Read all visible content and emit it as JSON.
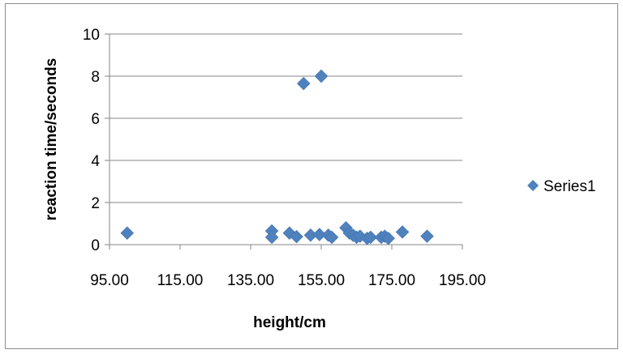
{
  "chart_data": {
    "type": "scatter",
    "title": "",
    "xlabel": "height/cm",
    "ylabel": "reaction time/seconds",
    "xlim": [
      95,
      195
    ],
    "ylim": [
      0,
      10
    ],
    "x_ticks": [
      "95.00",
      "115.00",
      "135.00",
      "155.00",
      "175.00",
      "195.00"
    ],
    "y_ticks": [
      "0",
      "2",
      "4",
      "6",
      "8",
      "10"
    ],
    "grid": "horizontal",
    "legend_position": "right",
    "marker": "diamond",
    "series": [
      {
        "name": "Series1",
        "color": "#4F81BD",
        "points": [
          {
            "x": 100,
            "y": 0.55
          },
          {
            "x": 141,
            "y": 0.65
          },
          {
            "x": 141,
            "y": 0.35
          },
          {
            "x": 146,
            "y": 0.55
          },
          {
            "x": 148,
            "y": 0.38
          },
          {
            "x": 150,
            "y": 7.65
          },
          {
            "x": 152,
            "y": 0.45
          },
          {
            "x": 154.5,
            "y": 0.48
          },
          {
            "x": 155,
            "y": 8.0
          },
          {
            "x": 157,
            "y": 0.45
          },
          {
            "x": 158,
            "y": 0.35
          },
          {
            "x": 162,
            "y": 0.8
          },
          {
            "x": 163,
            "y": 0.55
          },
          {
            "x": 164,
            "y": 0.45
          },
          {
            "x": 165,
            "y": 0.35
          },
          {
            "x": 166,
            "y": 0.4
          },
          {
            "x": 168,
            "y": 0.3
          },
          {
            "x": 169,
            "y": 0.35
          },
          {
            "x": 172,
            "y": 0.35
          },
          {
            "x": 173,
            "y": 0.4
          },
          {
            "x": 174,
            "y": 0.3
          },
          {
            "x": 178,
            "y": 0.6
          },
          {
            "x": 185,
            "y": 0.4
          }
        ]
      }
    ]
  }
}
